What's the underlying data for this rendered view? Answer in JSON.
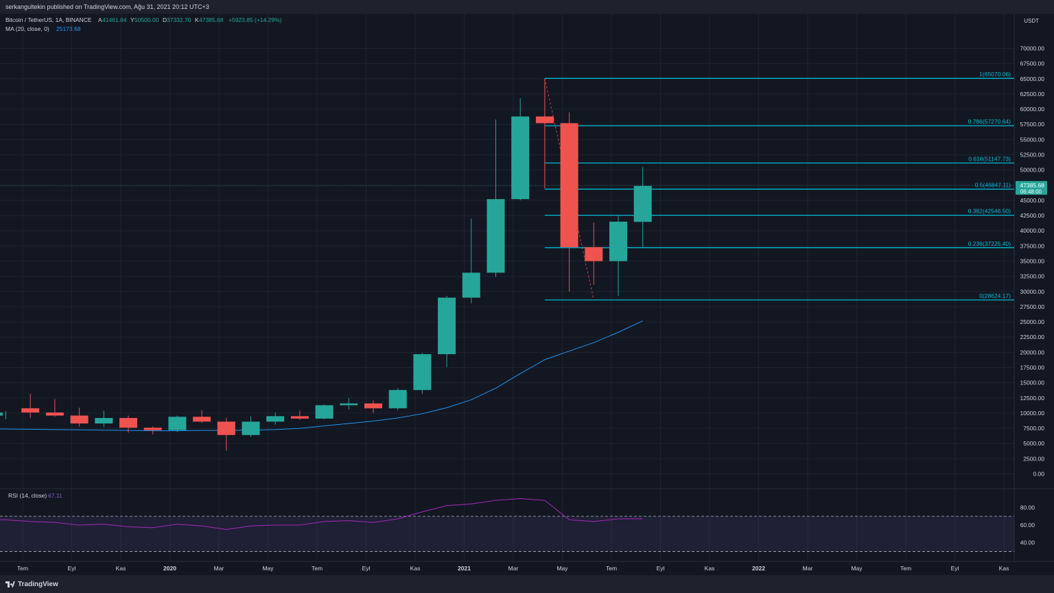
{
  "header": {
    "published": "serkangultekin published on TradingView.com, Ağu 31, 2021 20:12 UTC+3"
  },
  "legend": {
    "symbol": "Bitcoin / TetherUS, 1A, BINANCE",
    "ohlc": [
      {
        "k": "A",
        "v": "41461.84"
      },
      {
        "k": "Y",
        "v": "50500.00"
      },
      {
        "k": "D",
        "v": "37332.70"
      },
      {
        "k": "K",
        "v": "47385.68"
      }
    ],
    "change": "+5923.85 (+14.29%)",
    "ma_label": "MA (20, close, 0)",
    "ma_value": "25173.68",
    "rsi_label": "RSI (14, close)",
    "rsi_value": "67.11"
  },
  "price_axis": {
    "currency": "USDT",
    "ticks": [
      "70000.00",
      "67500.00",
      "65000.00",
      "62500.00",
      "60000.00",
      "57500.00",
      "55000.00",
      "52500.00",
      "50000.00",
      "47500.00",
      "45000.00",
      "42500.00",
      "40000.00",
      "37500.00",
      "35000.00",
      "32500.00",
      "30000.00",
      "27500.00",
      "25000.00",
      "22500.00",
      "20000.00",
      "17500.00",
      "15000.00",
      "12500.00",
      "10000.00",
      "7500.00",
      "5000.00",
      "2500.00",
      "0.00"
    ],
    "current_price": "47385.68",
    "countdown": "06:48:00"
  },
  "rsi_axis": {
    "ticks": [
      "80.00",
      "60.00",
      "40.00"
    ]
  },
  "time_axis": [
    "Tem",
    "Eyl",
    "Kas",
    "2020",
    "Mar",
    "May",
    "Tem",
    "Eyl",
    "Kas",
    "2021",
    "Mar",
    "May",
    "Tem",
    "Eyl",
    "Kas",
    "2022",
    "Mar",
    "May",
    "Tem",
    "Eyl",
    "Kas"
  ],
  "footer": {
    "brand": "TradingView"
  },
  "colors": {
    "up": "#26a69a",
    "down": "#ef5350",
    "ma": "#2196f3",
    "fib": "#00bcd4",
    "rsi": "#9c27b0"
  },
  "chart_data": {
    "type": "candlestick",
    "interval": "1M",
    "ylim": [
      0,
      70000
    ],
    "candles": [
      {
        "o": 9600,
        "h": 10300,
        "l": 9000,
        "c": 10100
      },
      {
        "o": 10800,
        "h": 13200,
        "l": 9200,
        "c": 10100
      },
      {
        "o": 10100,
        "h": 12300,
        "l": 9400,
        "c": 9600
      },
      {
        "o": 9600,
        "h": 10900,
        "l": 7800,
        "c": 8300
      },
      {
        "o": 8300,
        "h": 10400,
        "l": 7700,
        "c": 9200
      },
      {
        "o": 9200,
        "h": 9600,
        "l": 6800,
        "c": 7600
      },
      {
        "o": 7600,
        "h": 7800,
        "l": 6500,
        "c": 7200
      },
      {
        "o": 7200,
        "h": 9600,
        "l": 6900,
        "c": 9400
      },
      {
        "o": 9400,
        "h": 10500,
        "l": 8400,
        "c": 8600
      },
      {
        "o": 8600,
        "h": 9200,
        "l": 3800,
        "c": 6400
      },
      {
        "o": 6400,
        "h": 9500,
        "l": 6100,
        "c": 8600
      },
      {
        "o": 8600,
        "h": 10100,
        "l": 8100,
        "c": 9500
      },
      {
        "o": 9500,
        "h": 10400,
        "l": 8900,
        "c": 9100
      },
      {
        "o": 9100,
        "h": 11400,
        "l": 9000,
        "c": 11300
      },
      {
        "o": 11300,
        "h": 12500,
        "l": 10600,
        "c": 11600
      },
      {
        "o": 11600,
        "h": 12100,
        "l": 10000,
        "c": 10800
      },
      {
        "o": 10800,
        "h": 14100,
        "l": 10500,
        "c": 13800
      },
      {
        "o": 13800,
        "h": 19900,
        "l": 13200,
        "c": 19700
      },
      {
        "o": 19700,
        "h": 29300,
        "l": 17600,
        "c": 29000
      },
      {
        "o": 29000,
        "h": 42000,
        "l": 28100,
        "c": 33100
      },
      {
        "o": 33100,
        "h": 58300,
        "l": 32400,
        "c": 45200
      },
      {
        "o": 45200,
        "h": 61800,
        "l": 45000,
        "c": 58800
      },
      {
        "o": 58800,
        "h": 64900,
        "l": 47000,
        "c": 57700
      },
      {
        "o": 57700,
        "h": 59500,
        "l": 30000,
        "c": 37300
      },
      {
        "o": 37300,
        "h": 41300,
        "l": 31100,
        "c": 35000
      },
      {
        "o": 35000,
        "h": 42500,
        "l": 29300,
        "c": 41500
      },
      {
        "o": 41461.84,
        "h": 50500,
        "l": 37332.7,
        "c": 47385.68
      }
    ],
    "ma": [
      7400,
      7350,
      7300,
      7250,
      7200,
      7150,
      7100,
      7100,
      7150,
      7150,
      7200,
      7300,
      7500,
      7900,
      8300,
      8700,
      9200,
      9900,
      10900,
      12200,
      14100,
      16500,
      18800,
      20200,
      21600,
      23300,
      25173.68
    ],
    "rsi": [
      66,
      64,
      63,
      60,
      61,
      58,
      57,
      61,
      59,
      55,
      59,
      60,
      60,
      64,
      65,
      63,
      67,
      75,
      82,
      84,
      88,
      90,
      88,
      66,
      64,
      67,
      67.11
    ],
    "rsi_ylim": [
      25,
      95
    ],
    "rsi_bands": [
      70,
      30
    ],
    "fib": [
      {
        "label": "1(65070.06)",
        "level": 1,
        "price": 65070.06
      },
      {
        "label": "0.786(57270.64)",
        "level": 0.786,
        "price": 57270.64
      },
      {
        "label": "0.618(51147.73)",
        "level": 0.618,
        "price": 51147.73
      },
      {
        "label": "0.5(46847.11)",
        "level": 0.5,
        "price": 46847.11
      },
      {
        "label": "0.382(42546.50)",
        "level": 0.382,
        "price": 42546.5
      },
      {
        "label": "0.236(37225.40)",
        "level": 0.236,
        "price": 37225.4
      },
      {
        "label": "0(28624.17)",
        "level": 0,
        "price": 28624.17
      }
    ]
  }
}
